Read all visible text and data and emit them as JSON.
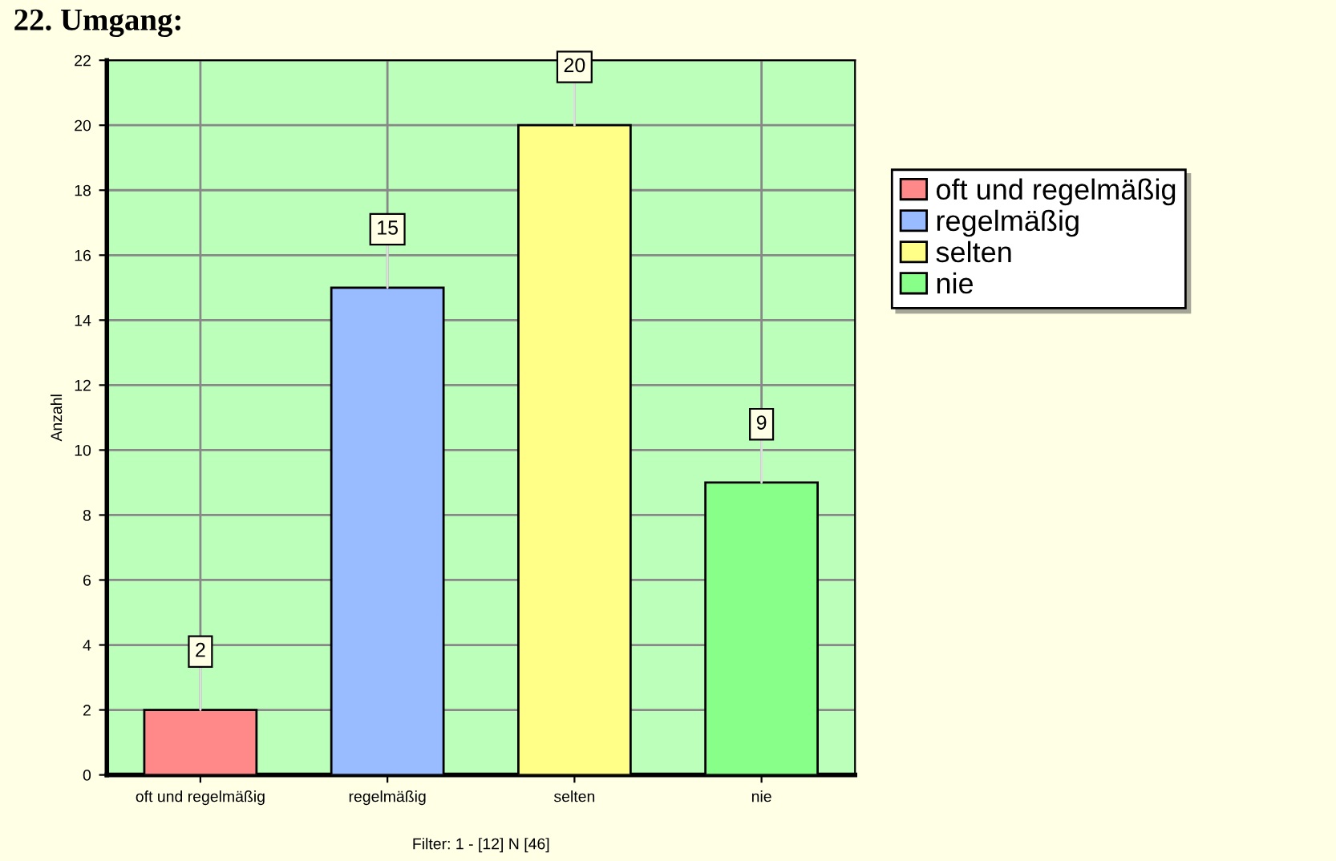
{
  "chart_data": {
    "type": "bar",
    "title": "22. Umgang:",
    "ylabel": "Anzahl",
    "categories": [
      "oft und regelmäßig",
      "regelmäßig",
      "selten",
      "nie"
    ],
    "series": [
      {
        "name": "oft und regelmäßig",
        "color": "#ff8888",
        "values": [
          2,
          null,
          null,
          null
        ]
      },
      {
        "name": "regelmäßig",
        "color": "#99bbff",
        "values": [
          null,
          15,
          null,
          null
        ]
      },
      {
        "name": "selten",
        "color": "#ffff88",
        "values": [
          null,
          null,
          20,
          null
        ]
      },
      {
        "name": "nie",
        "color": "#88ff88",
        "values": [
          null,
          null,
          null,
          9
        ]
      }
    ],
    "ylim": [
      0,
      22
    ],
    "yticks": [
      0,
      2,
      4,
      6,
      8,
      10,
      12,
      14,
      16,
      18,
      20,
      22
    ],
    "grid": true,
    "legend": "right",
    "data_labels": true,
    "annotations": [
      "Filter: 1 - [12] N [46]"
    ]
  }
}
